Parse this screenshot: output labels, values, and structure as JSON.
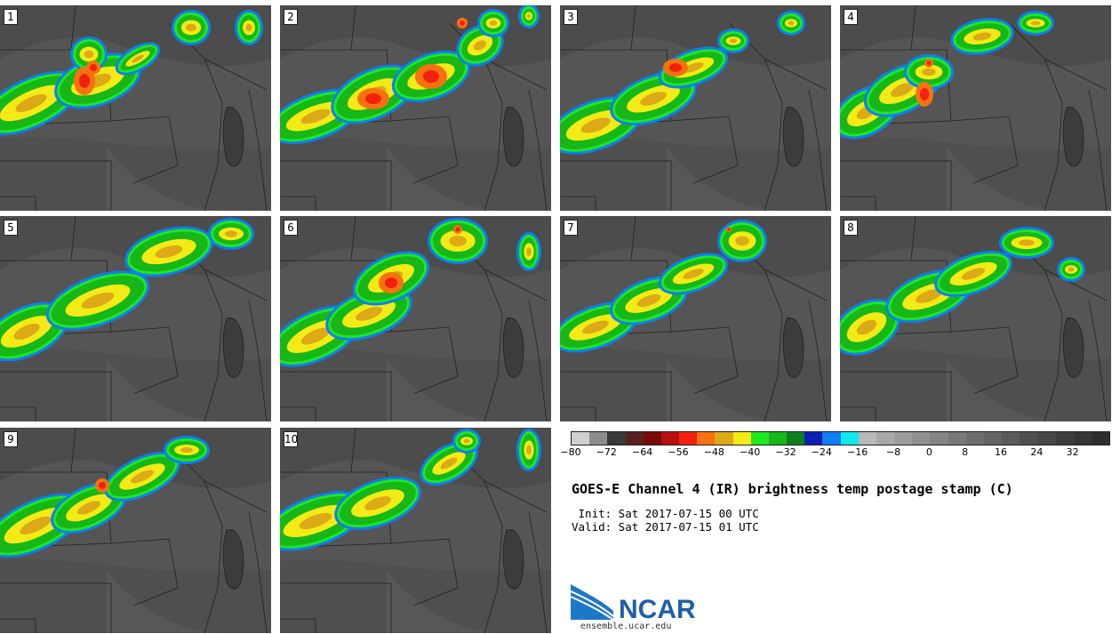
{
  "panels": [
    {
      "label": "1"
    },
    {
      "label": "2"
    },
    {
      "label": "3"
    },
    {
      "label": "4"
    },
    {
      "label": "5"
    },
    {
      "label": "6"
    },
    {
      "label": "7"
    },
    {
      "label": "8"
    },
    {
      "label": "9"
    },
    {
      "label": "10"
    }
  ],
  "colorbar": {
    "colors": [
      "#cfcfcf",
      "#8c8c8c",
      "#3a3a3a",
      "#5a1f1f",
      "#7a0a0a",
      "#b80f0f",
      "#f2200e",
      "#f7720f",
      "#dca917",
      "#f3ea16",
      "#1ee81f",
      "#16b716",
      "#0e7f1f",
      "#0d1fb3",
      "#0f7ef2",
      "#11e8ee",
      "#b8b8b8",
      "#a8a8a8",
      "#9c9c9c",
      "#909090",
      "#848484",
      "#787878",
      "#6e6e6e",
      "#646464",
      "#5a5a5a",
      "#505050",
      "#474747",
      "#3e3e3e",
      "#363636",
      "#2e2e2e"
    ],
    "ticks": [
      "−80",
      "−72",
      "−64",
      "−56",
      "−48",
      "−40",
      "−32",
      "−24",
      "−16",
      "−8",
      "0",
      "8",
      "16",
      "24",
      "32"
    ]
  },
  "title": "GOES-E Channel 4 (IR) brightness temp postage stamp (C)",
  "init": " Init: Sat 2017-07-15 00 UTC",
  "valid": "Valid: Sat 2017-07-15 01 UTC",
  "logo": {
    "text": "NCAR",
    "url": "ensemble.ucar.edu",
    "brand_blue": "#1f77c8"
  }
}
